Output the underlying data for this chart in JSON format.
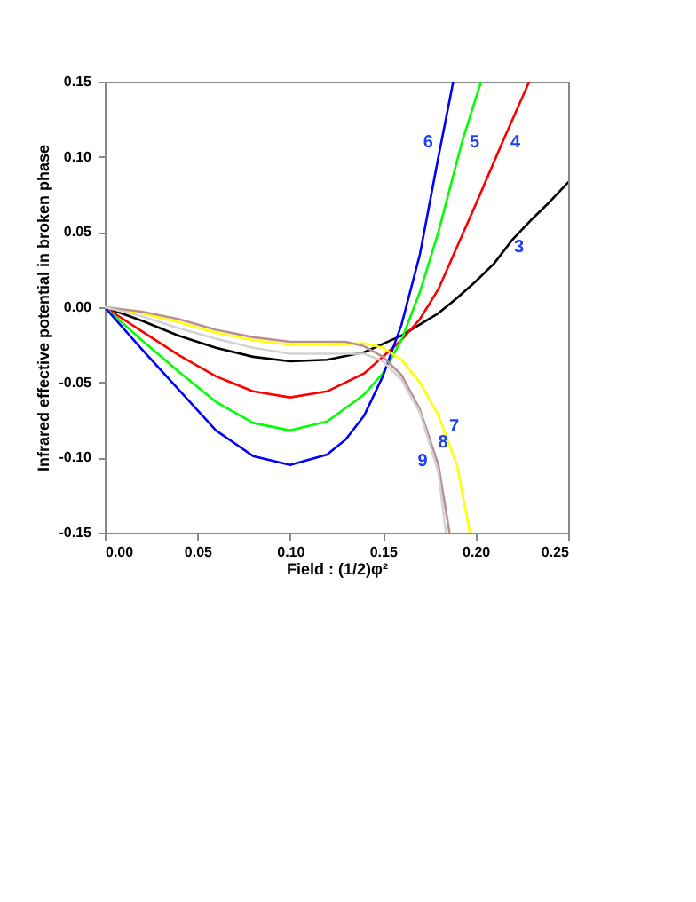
{
  "chart_data": {
    "type": "line",
    "xlabel": "Field : (1/2)φ²",
    "ylabel": "Infrared effective potential in broken phase",
    "xlim": [
      0,
      0.25
    ],
    "ylim": [
      -0.15,
      0.15
    ],
    "xticks": [
      {
        "value": 0,
        "label": "0.00"
      },
      {
        "value": 0.05,
        "label": "0.05"
      },
      {
        "value": 0.1,
        "label": "0.10"
      },
      {
        "value": 0.15,
        "label": "0.15"
      },
      {
        "value": 0.2,
        "label": "0.20"
      },
      {
        "value": 0.25,
        "label": "0.25"
      }
    ],
    "yticks": [
      {
        "value": -0.15,
        "label": "-0.15"
      },
      {
        "value": -0.1,
        "label": "-0.10"
      },
      {
        "value": -0.05,
        "label": "-0.05"
      },
      {
        "value": 0,
        "label": "0.00"
      },
      {
        "value": 0.05,
        "label": "0.05"
      },
      {
        "value": 0.1,
        "label": "0.10"
      },
      {
        "value": 0.15,
        "label": "0.15"
      }
    ],
    "grid": false,
    "marker": "none",
    "line_style": "solid",
    "legend": false,
    "series": [
      {
        "color": "#000000",
        "x": [
          0,
          0.02,
          0.04,
          0.06,
          0.08,
          0.1,
          0.12,
          0.14,
          0.16,
          0.18,
          0.19,
          0.2,
          0.21,
          0.22,
          0.23,
          0.24,
          0.25
        ],
        "values": [
          0,
          -0.009,
          -0.019,
          -0.027,
          -0.033,
          -0.036,
          -0.035,
          -0.03,
          -0.019,
          -0.004,
          0.006,
          0.017,
          0.029,
          0.045,
          0.058,
          0.07,
          0.083
        ]
      },
      {
        "color": "#ff0000",
        "x": [
          0,
          0.02,
          0.04,
          0.06,
          0.08,
          0.1,
          0.12,
          0.14,
          0.16,
          0.17,
          0.18,
          0.19,
          0.2,
          0.215,
          0.229
        ],
        "values": [
          0,
          -0.016,
          -0.032,
          -0.046,
          -0.056,
          -0.06,
          -0.056,
          -0.044,
          -0.022,
          -0.008,
          0.012,
          0.04,
          0.068,
          0.111,
          0.15
        ]
      },
      {
        "color": "#00ff00",
        "x": [
          0,
          0.02,
          0.04,
          0.06,
          0.08,
          0.1,
          0.12,
          0.14,
          0.15,
          0.16,
          0.17,
          0.18,
          0.193,
          0.203
        ],
        "values": [
          0,
          -0.022,
          -0.043,
          -0.063,
          -0.077,
          -0.082,
          -0.076,
          -0.058,
          -0.044,
          -0.022,
          0.01,
          0.05,
          0.111,
          0.15
        ]
      },
      {
        "color": "#0000ff",
        "x": [
          0,
          0.02,
          0.04,
          0.06,
          0.08,
          0.1,
          0.12,
          0.13,
          0.14,
          0.15,
          0.16,
          0.17,
          0.18,
          0.188
        ],
        "values": [
          0,
          -0.028,
          -0.055,
          -0.082,
          -0.099,
          -0.105,
          -0.098,
          -0.088,
          -0.072,
          -0.046,
          -0.012,
          0.035,
          0.1,
          0.15
        ]
      },
      {
        "color": "#ffff00",
        "x": [
          0,
          0.02,
          0.04,
          0.06,
          0.08,
          0.1,
          0.12,
          0.14,
          0.15,
          0.16,
          0.17,
          0.18,
          0.19,
          0.197
        ],
        "values": [
          0,
          -0.004,
          -0.01,
          -0.017,
          -0.022,
          -0.025,
          -0.025,
          -0.024,
          -0.027,
          -0.035,
          -0.05,
          -0.072,
          -0.105,
          -0.15
        ]
      },
      {
        "color": "#bc8f8f",
        "x": [
          0,
          0.02,
          0.04,
          0.06,
          0.08,
          0.1,
          0.12,
          0.13,
          0.14,
          0.15,
          0.16,
          0.17,
          0.18,
          0.186
        ],
        "values": [
          0,
          -0.003,
          -0.008,
          -0.015,
          -0.02,
          -0.023,
          -0.023,
          -0.023,
          -0.026,
          -0.033,
          -0.045,
          -0.068,
          -0.105,
          -0.15
        ]
      },
      {
        "color": "#d3d3d3",
        "x": [
          0,
          0.02,
          0.04,
          0.06,
          0.08,
          0.1,
          0.12,
          0.14,
          0.15,
          0.16,
          0.17,
          0.18,
          0.184
        ],
        "values": [
          0,
          -0.006,
          -0.014,
          -0.021,
          -0.027,
          -0.031,
          -0.031,
          -0.031,
          -0.036,
          -0.048,
          -0.07,
          -0.11,
          -0.15
        ]
      }
    ],
    "annotations": [
      {
        "text": "3",
        "x": 0.217,
        "y": 0.04
      },
      {
        "text": "4",
        "x": 0.215,
        "y": 0.11
      },
      {
        "text": "5",
        "x": 0.193,
        "y": 0.11
      },
      {
        "text": "6",
        "x": 0.181,
        "y": 0.11
      },
      {
        "text": "7",
        "x": 0.182,
        "y": -0.079
      },
      {
        "text": "8",
        "x": 0.176,
        "y": -0.09
      },
      {
        "text": "9",
        "x": 0.178,
        "y": -0.102
      }
    ]
  }
}
